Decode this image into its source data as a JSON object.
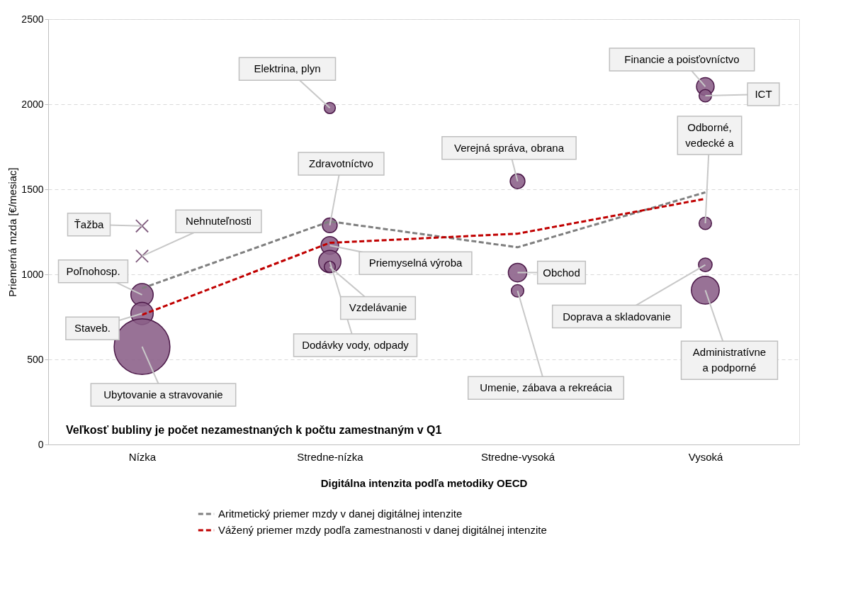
{
  "chart_data": {
    "type": "bubble",
    "categories": [
      "Nízka",
      "Stredne-nízka",
      "Stredne-vysoká",
      "Vysoká"
    ],
    "series": [
      {
        "color": "#8a5f87",
        "marker": "circle",
        "x": [
          "Nízka",
          "Nízka",
          "Nízka",
          "Stredne-nízka",
          "Stredne-nízka",
          "Stredne-nízka",
          "Stredne-nízka",
          "Stredne-nízka",
          "Stredne-vysoká",
          "Stredne-vysoká",
          "Stredne-vysoká",
          "Vysoká",
          "Vysoká",
          "Vysoká",
          "Vysoká",
          "Vysoká"
        ],
        "values": [
          880,
          770,
          575,
          1978,
          1288,
          1170,
          1075,
          1044,
          1547,
          1010,
          903,
          2104,
          2050,
          1300,
          1056,
          907
        ],
        "sizes": [
          0.16,
          0.16,
          1,
          0.04,
          0.07,
          0.1,
          0.16,
          0.04,
          0.07,
          0.11,
          0.05,
          0.1,
          0.05,
          0.05,
          0.06,
          0.25
        ]
      },
      {
        "type": "scatter",
        "color": "#4b1848",
        "marker": "cross",
        "x": [
          "Nízka",
          "Nízka"
        ],
        "values": [
          1284,
          1107
        ]
      },
      {
        "type": "line",
        "name": "Aritmetický priemer mzdy v danej digitálnej intenzite",
        "color": "#7f7f7f",
        "line_style": "dashed",
        "values": [
          918,
          1311,
          1159,
          1482
        ]
      },
      {
        "type": "line",
        "name": "Vážený priemer mzdy podľa zamestnanosti v danej digitálnej intenzite",
        "color": "#c00000",
        "line_style": "dashed",
        "values": [
          762,
          1185,
          1239,
          1444
        ]
      }
    ],
    "ylim": [
      0,
      2500
    ],
    "yticks": [
      0,
      500,
      1000,
      1500,
      2000,
      2500
    ],
    "grid": "y",
    "legend": "bottom",
    "xlabel": "Digitálna intenzita podľa metodiky OECD",
    "ylabel": "Priemerná mzda [€/mesiac]",
    "annotations": [
      {
        "text": "Ťažba",
        "x": "Nízka",
        "y": 1284
      },
      {
        "text": "Nehnuteľnosti",
        "x": "Nízka",
        "y": 1107
      },
      {
        "text": "Poľnohosp.",
        "x": "Nízka",
        "y": 880
      },
      {
        "text": "Staveb.",
        "x": "Nízka",
        "y": 770
      },
      {
        "text": "Ubytovanie a stravovanie",
        "x": "Nízka",
        "y": 575
      },
      {
        "text": "Elektrina, plyn",
        "x": "Stredne-nízka",
        "y": 1978
      },
      {
        "text": "Zdravotníctvo",
        "x": "Stredne-nízka",
        "y": 1288
      },
      {
        "text": "Priemyselná výroba",
        "x": "Stredne-nízka",
        "y": 1170
      },
      {
        "text": "Dodávky vody, odpady",
        "x": "Stredne-nízka",
        "y": 1075
      },
      {
        "text": "Vzdelávanie",
        "x": "Stredne-nízka",
        "y": 1044
      },
      {
        "text": "Verejná správa, obrana",
        "x": "Stredne-vysoká",
        "y": 1547
      },
      {
        "text": "Obchod",
        "x": "Stredne-vysoká",
        "y": 1010
      },
      {
        "text": "Umenie, zábava a rekreácia",
        "x": "Stredne-vysoká",
        "y": 903
      },
      {
        "text": "Financie a poisťovníctvo",
        "x": "Vysoká",
        "y": 2104
      },
      {
        "text": "ICT",
        "x": "Vysoká",
        "y": 2050
      },
      {
        "text": "Odborné,\nvedecké a",
        "x": "Vysoká",
        "y": 1300
      },
      {
        "text": "Doprava a skladovanie",
        "x": "Vysoká",
        "y": 1056
      },
      {
        "text": "Administratívne\na podporné",
        "x": "Vysoká",
        "y": 907
      },
      "Veľkosť bubliny je počet nezamestnaných k počtu zamestnaným v Q1"
    ]
  }
}
